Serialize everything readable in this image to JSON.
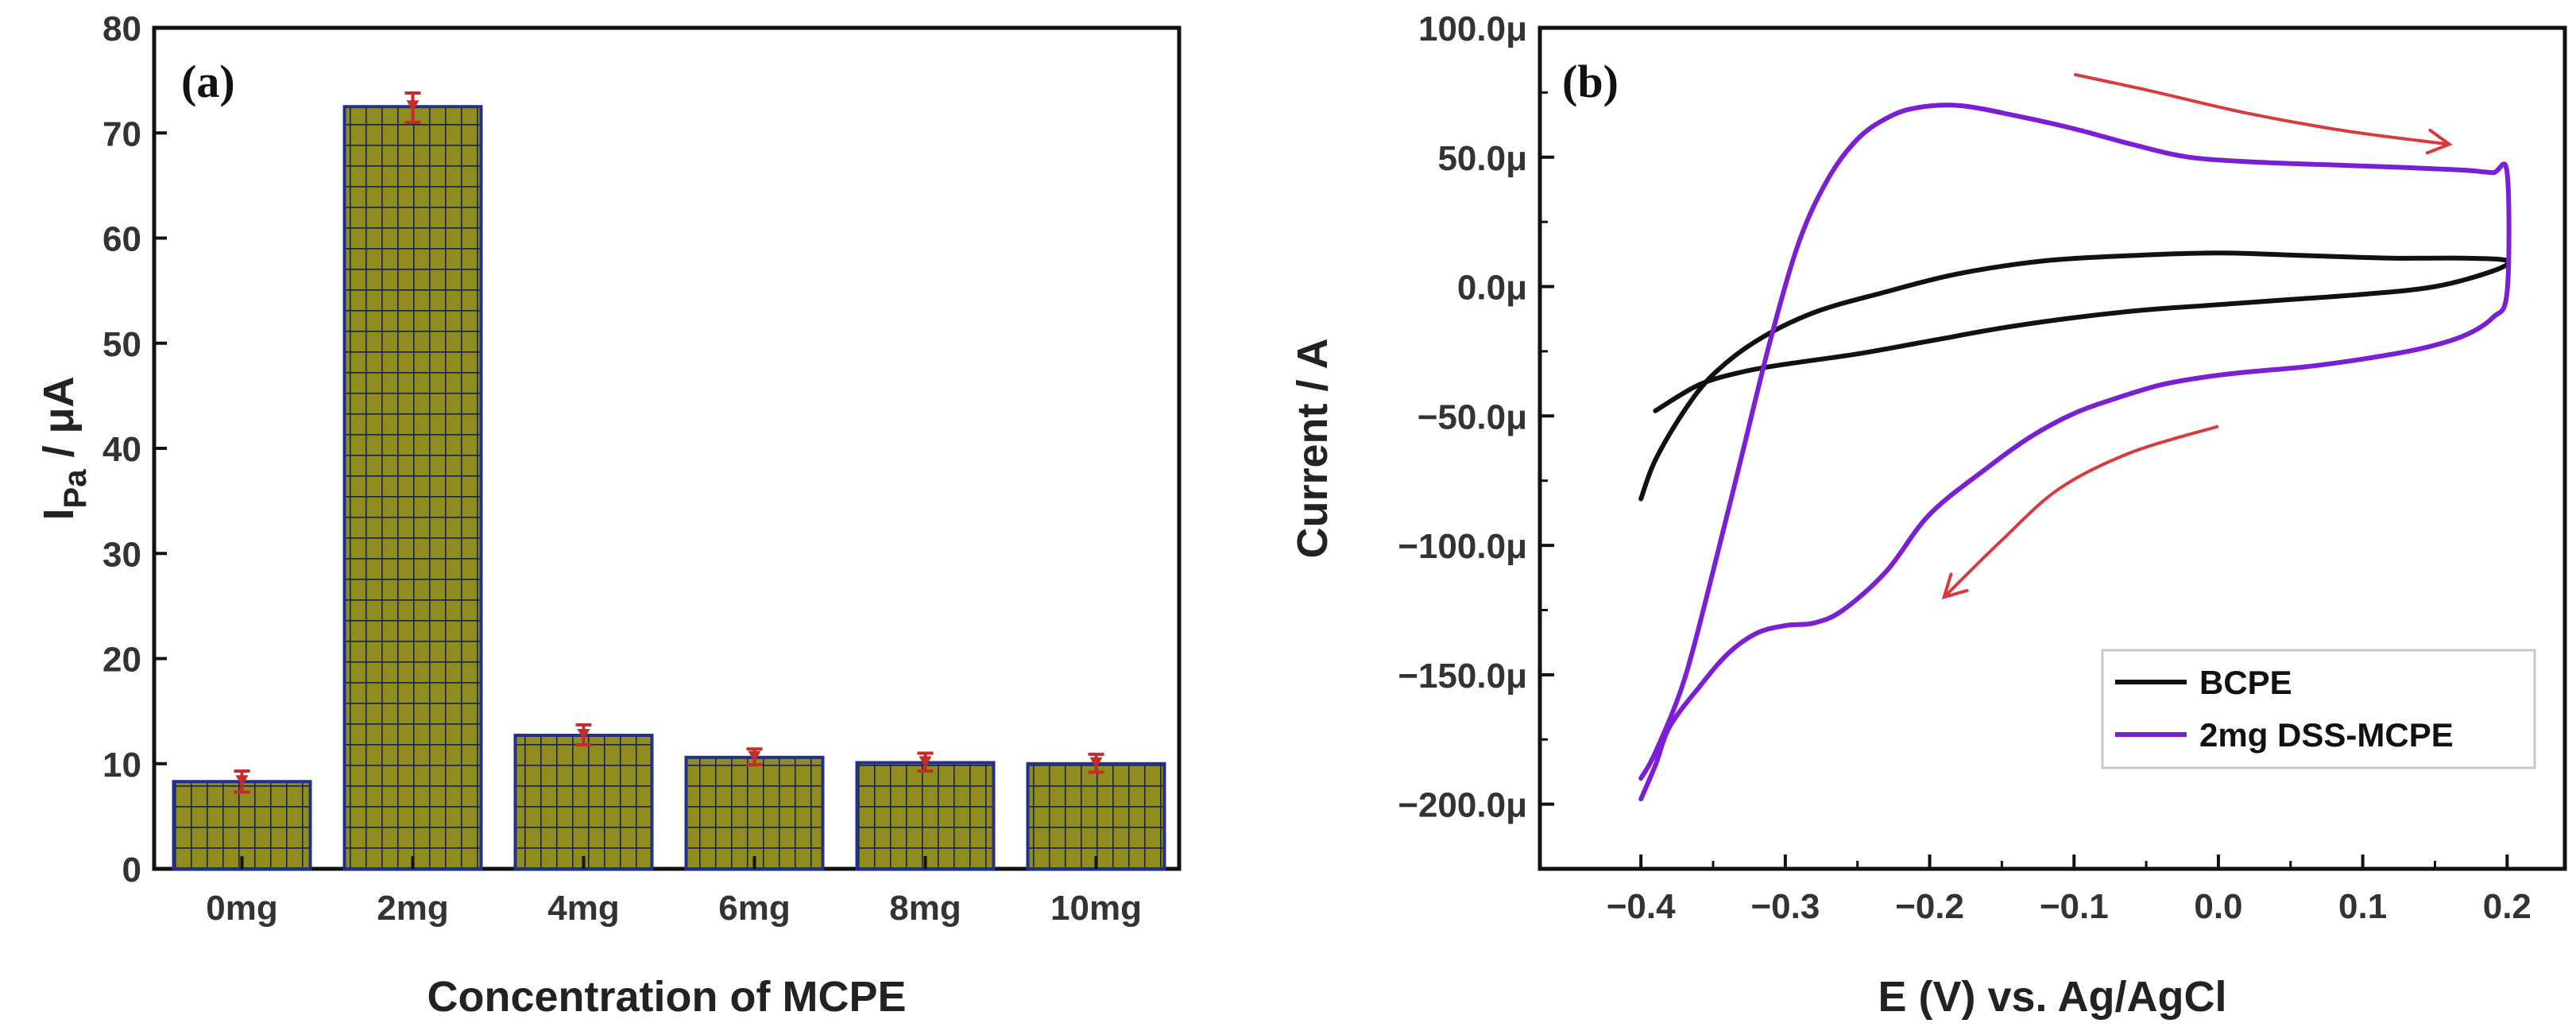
{
  "chart_data": [
    {
      "type": "bar",
      "panel_label": "(a)",
      "title": "",
      "categories": [
        "0mg",
        "2mg",
        "4mg",
        "6mg",
        "8mg",
        "10mg"
      ],
      "values": [
        8.3,
        72.5,
        12.7,
        10.6,
        10.1,
        10.0
      ],
      "error_low": [
        7.3,
        71.0,
        11.8,
        9.9,
        9.3,
        9.2
      ],
      "error_high": [
        9.3,
        73.8,
        13.7,
        11.4,
        11.0,
        10.9
      ],
      "xlabel": "Concentration of MCPE",
      "ylabel_main": "I",
      "ylabel_sub": "Pa",
      "ylabel_unit": " / μA",
      "ylim": [
        0,
        80
      ],
      "yticks": [
        0,
        10,
        20,
        30,
        40,
        50,
        60,
        70,
        80
      ],
      "ytick_labels": [
        "0",
        "10",
        "20",
        "30",
        "40",
        "50",
        "60",
        "70",
        "80"
      ],
      "colors": {
        "bar_fill": "#8f8d1f",
        "bar_grid": "#1e2638",
        "bar_edge": "#23308a",
        "error": "#c42b2b",
        "axis": "#111111"
      }
    },
    {
      "type": "line",
      "panel_label": "(b)",
      "title": "",
      "xlabel": "E (V) vs. Ag/AgCl",
      "ylabel": "Current / A",
      "xlim": [
        -0.47,
        0.24
      ],
      "ylim": [
        -225,
        100
      ],
      "xticks": [
        -0.4,
        -0.3,
        -0.2,
        -0.1,
        0.0,
        0.1,
        0.2
      ],
      "xtick_labels": [
        "−0.4",
        "−0.3",
        "−0.2",
        "−0.1",
        "0.0",
        "0.1",
        "0.2"
      ],
      "yticks": [
        -200,
        -150,
        -100,
        -50,
        0,
        50,
        100
      ],
      "ytick_labels": [
        "−200.0μ",
        "−150.0μ",
        "−100.0μ",
        "−50.0μ",
        "0.0μ",
        "50.0μ",
        "100.0μ"
      ],
      "legend_position": "bottom-right",
      "series": [
        {
          "name": "BCPE",
          "color": "#111111",
          "x": [
            -0.4,
            -0.39,
            -0.37,
            -0.35,
            -0.32,
            -0.28,
            -0.23,
            -0.18,
            -0.12,
            -0.06,
            0.0,
            0.06,
            0.12,
            0.17,
            0.2,
            0.19,
            0.15,
            0.1,
            0.05,
            0.0,
            -0.05,
            -0.1,
            -0.15,
            -0.2,
            -0.25,
            -0.3,
            -0.33,
            -0.36,
            -0.39
          ],
          "y": [
            -82,
            -67,
            -48,
            -34,
            -21,
            -10,
            -2,
            5,
            10,
            12,
            13,
            12,
            11,
            11,
            10,
            6,
            0,
            -3,
            -5,
            -7,
            -9,
            -12,
            -16,
            -21,
            -26,
            -30,
            -33,
            -38,
            -48
          ]
        },
        {
          "name": "2mg DSS-MCPE",
          "color": "#7a1fd4",
          "x": [
            -0.4,
            -0.39,
            -0.38,
            -0.36,
            -0.34,
            -0.32,
            -0.3,
            -0.28,
            -0.26,
            -0.23,
            -0.2,
            -0.16,
            -0.13,
            -0.1,
            -0.07,
            -0.04,
            -0.01,
            0.02,
            0.06,
            0.1,
            0.14,
            0.17,
            0.19,
            0.2,
            0.2,
            0.19,
            0.17,
            0.13,
            0.08,
            0.03,
            -0.02,
            -0.06,
            -0.1,
            -0.14,
            -0.18,
            -0.21,
            -0.23,
            -0.25,
            -0.27,
            -0.29,
            -0.31,
            -0.33,
            -0.35,
            -0.37,
            -0.39,
            -0.4
          ],
          "y": [
            -198,
            -185,
            -170,
            -155,
            -142,
            -134,
            -131,
            -130,
            -125,
            -110,
            -88,
            -70,
            -58,
            -49,
            -43,
            -38,
            -35,
            -33,
            -31,
            -28,
            -24,
            -19,
            -12,
            -2,
            44,
            44,
            45,
            46,
            47,
            48,
            50,
            55,
            61,
            66,
            70,
            69,
            65,
            57,
            42,
            18,
            -20,
            -65,
            -110,
            -152,
            -180,
            -190
          ]
        }
      ],
      "arrows": [
        {
          "name": "forward-scan-arrow",
          "x": [
            -0.1,
            -0.05,
            0.02,
            0.09,
            0.16
          ],
          "y": [
            82,
            76,
            67,
            60,
            55
          ]
        },
        {
          "name": "reverse-scan-arrow",
          "x": [
            0.0,
            -0.06,
            -0.11,
            -0.15,
            -0.19
          ],
          "y": [
            -54,
            -64,
            -78,
            -98,
            -120
          ]
        }
      ],
      "colors": {
        "arrow": "#d83b3b",
        "axis": "#111111"
      }
    }
  ]
}
